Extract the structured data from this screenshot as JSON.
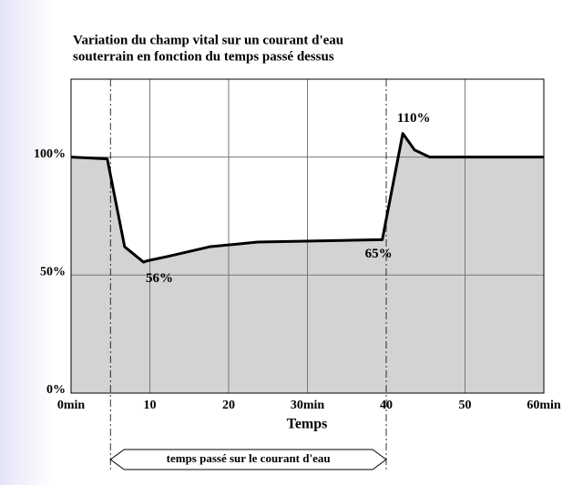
{
  "chart_data": {
    "type": "area",
    "title": [
      "Variation du champ vital sur un courant d'eau",
      "souterrain en fonction du temps passé dessus"
    ],
    "xlabel": "Temps",
    "x": [
      0,
      4.6,
      6.8,
      9.2,
      9.6,
      12.4,
      17.6,
      23.7,
      39.5,
      42.1,
      43.6,
      45.5,
      60
    ],
    "values": [
      100,
      99.2,
      62,
      55.5,
      56,
      58,
      62,
      64,
      65,
      110,
      103,
      100,
      100
    ],
    "value_labels": [
      null,
      null,
      null,
      null,
      "56%",
      null,
      null,
      null,
      "65%",
      "110%",
      null,
      null,
      null
    ],
    "color": "#000000",
    "fill": "#d3d3d3",
    "xlim": [
      0,
      60
    ],
    "xticks": [
      {
        "value": 0,
        "label": "0min"
      },
      10,
      20,
      {
        "value": 30,
        "label": "30min"
      },
      40,
      50,
      {
        "value": 60,
        "label": "60min"
      }
    ],
    "ylim": [
      0,
      133
    ],
    "yticks": [
      {
        "value": 0,
        "label": "0%"
      },
      {
        "value": 50,
        "label": "50%"
      },
      {
        "value": 100,
        "label": "100%"
      }
    ],
    "grid": true,
    "span": {
      "label": "temps passé sur le courant d'eau",
      "start": 5,
      "end": 40
    }
  }
}
